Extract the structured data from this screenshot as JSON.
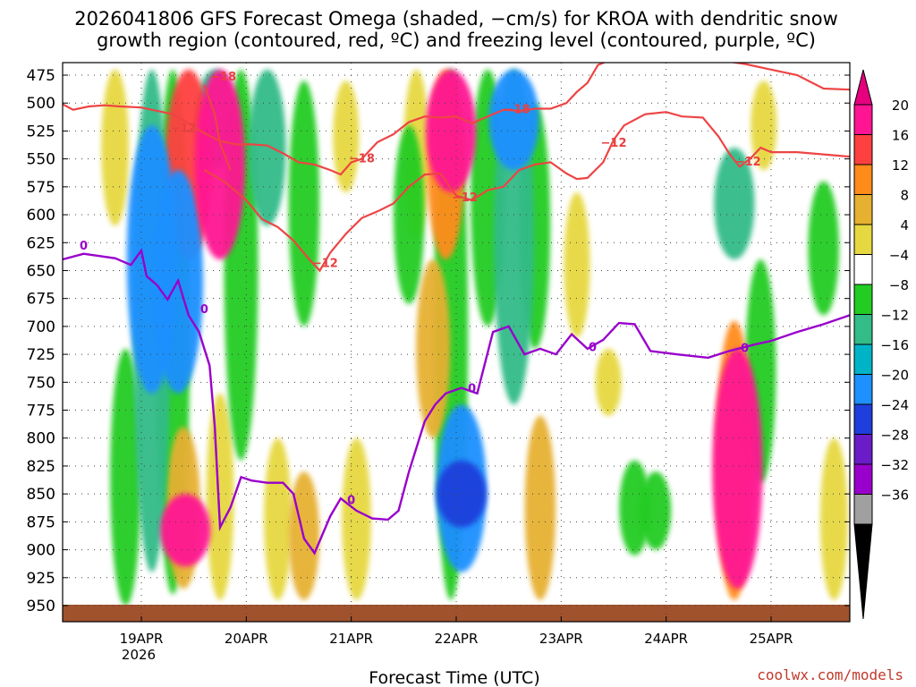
{
  "chart_data": {
    "type": "heatmap",
    "title_line1": "2026041806 GFS Forecast Omega (shaded, −cm/s) for KROA with dendritic snow",
    "title_line2": "growth region (contoured, red, ºC) and freezing level (contoured, purple, ºC)",
    "xlabel": "Forecast Time (UTC)",
    "credit": "coolwx.com/models",
    "x_ticks": [
      {
        "day": 19,
        "label": "19APR",
        "sub": "2026"
      },
      {
        "day": 20,
        "label": "20APR",
        "sub": ""
      },
      {
        "day": 21,
        "label": "21APR",
        "sub": ""
      },
      {
        "day": 22,
        "label": "22APR",
        "sub": ""
      },
      {
        "day": 23,
        "label": "23APR",
        "sub": ""
      },
      {
        "day": 24,
        "label": "24APR",
        "sub": ""
      },
      {
        "day": 25,
        "label": "25APR",
        "sub": ""
      }
    ],
    "x_range": [
      18.25,
      25.75
    ],
    "y_ticks": [
      475,
      500,
      525,
      550,
      575,
      600,
      625,
      650,
      675,
      700,
      725,
      750,
      775,
      800,
      825,
      850,
      875,
      900,
      925,
      950
    ],
    "colorbar": {
      "labels": [
        "20",
        "16",
        "12",
        "8",
        "4",
        "−4",
        "−8",
        "−12",
        "−16",
        "−20",
        "−24",
        "−28",
        "−32",
        "−36"
      ],
      "colors": [
        "#ff1493",
        "#ff4040",
        "#ff8c1a",
        "#e6b030",
        "#e6d840",
        "#ffffff",
        "#22cc22",
        "#33bb88",
        "#00b4c8",
        "#1e90ff",
        "#1e3fdc",
        "#6a1cc8",
        "#9900cc",
        "#a0a0a0"
      ],
      "top_color": "#e6007e",
      "bottom_color": "#000000"
    },
    "omega_blobs": [
      {
        "t": 18.75,
        "p0": 470,
        "p1": 610,
        "value": 6
      },
      {
        "t": 18.85,
        "p0": 720,
        "p1": 950,
        "value": -8
      },
      {
        "t": 19.1,
        "p0": 470,
        "p1": 920,
        "value": -12
      },
      {
        "t": 19.1,
        "p0": 520,
        "p1": 760,
        "value": -22
      },
      {
        "t": 19.3,
        "p0": 470,
        "p1": 940,
        "value": -10
      },
      {
        "t": 19.35,
        "p0": 560,
        "p1": 760,
        "value": -20
      },
      {
        "t": 19.45,
        "p0": 470,
        "p1": 640,
        "value": 18
      },
      {
        "t": 19.4,
        "p0": 790,
        "p1": 935,
        "value": 10
      },
      {
        "t": 19.42,
        "p0": 850,
        "p1": 915,
        "value": 20
      },
      {
        "t": 19.7,
        "p0": 470,
        "p1": 560,
        "value": -14
      },
      {
        "t": 19.75,
        "p0": 470,
        "p1": 640,
        "value": 20
      },
      {
        "t": 19.75,
        "p0": 760,
        "p1": 945,
        "value": 6
      },
      {
        "t": 19.95,
        "p0": 470,
        "p1": 820,
        "value": -10
      },
      {
        "t": 20.2,
        "p0": 470,
        "p1": 610,
        "value": -12
      },
      {
        "t": 20.3,
        "p0": 800,
        "p1": 945,
        "value": 6
      },
      {
        "t": 20.55,
        "p0": 480,
        "p1": 700,
        "value": -8
      },
      {
        "t": 20.55,
        "p0": 830,
        "p1": 945,
        "value": 8
      },
      {
        "t": 20.95,
        "p0": 480,
        "p1": 580,
        "value": 5
      },
      {
        "t": 21.05,
        "p0": 800,
        "p1": 945,
        "value": 7
      },
      {
        "t": 21.55,
        "p0": 520,
        "p1": 680,
        "value": -8
      },
      {
        "t": 21.62,
        "p0": 470,
        "p1": 620,
        "value": 5
      },
      {
        "t": 21.95,
        "p0": 470,
        "p1": 945,
        "value": -10
      },
      {
        "t": 21.9,
        "p0": 470,
        "p1": 640,
        "value": 12
      },
      {
        "t": 21.95,
        "p0": 470,
        "p1": 580,
        "value": 20
      },
      {
        "t": 21.78,
        "p0": 640,
        "p1": 800,
        "value": 10
      },
      {
        "t": 22.05,
        "p0": 770,
        "p1": 920,
        "value": -20
      },
      {
        "t": 22.05,
        "p0": 820,
        "p1": 880,
        "value": -26
      },
      {
        "t": 22.3,
        "p0": 470,
        "p1": 700,
        "value": -10
      },
      {
        "t": 22.55,
        "p0": 470,
        "p1": 770,
        "value": -14
      },
      {
        "t": 22.55,
        "p0": 470,
        "p1": 560,
        "value": -20
      },
      {
        "t": 22.75,
        "p0": 500,
        "p1": 720,
        "value": -8
      },
      {
        "t": 22.8,
        "p0": 780,
        "p1": 945,
        "value": 8
      },
      {
        "t": 23.15,
        "p0": 580,
        "p1": 710,
        "value": 5
      },
      {
        "t": 23.45,
        "p0": 720,
        "p1": 780,
        "value": 5
      },
      {
        "t": 23.7,
        "p0": 820,
        "p1": 905,
        "value": -8
      },
      {
        "t": 23.9,
        "p0": 830,
        "p1": 900,
        "value": -8
      },
      {
        "t": 24.65,
        "p0": 540,
        "p1": 640,
        "value": -14
      },
      {
        "t": 24.65,
        "p0": 695,
        "p1": 945,
        "value": 12
      },
      {
        "t": 24.68,
        "p0": 720,
        "p1": 935,
        "value": 20
      },
      {
        "t": 24.93,
        "p0": 480,
        "p1": 560,
        "value": 5
      },
      {
        "t": 24.9,
        "p0": 640,
        "p1": 840,
        "value": -8
      },
      {
        "t": 25.5,
        "p0": 570,
        "p1": 690,
        "value": -8
      },
      {
        "t": 25.6,
        "p0": 800,
        "p1": 945,
        "value": 6
      }
    ],
    "isotherm_red_upper": [
      [
        18.25,
        501
      ],
      [
        18.35,
        506
      ],
      [
        18.5,
        503
      ],
      [
        18.65,
        502
      ],
      [
        18.8,
        503
      ],
      [
        19.0,
        504
      ],
      [
        19.15,
        507
      ],
      [
        19.3,
        510
      ],
      [
        19.45,
        518
      ],
      [
        19.6,
        527
      ],
      [
        19.75,
        534
      ],
      [
        19.9,
        537
      ],
      [
        20.05,
        537
      ],
      [
        20.2,
        538
      ],
      [
        20.35,
        545
      ],
      [
        20.5,
        553
      ],
      [
        20.65,
        555
      ],
      [
        20.8,
        560
      ],
      [
        20.9,
        564
      ],
      [
        21.0,
        553
      ],
      [
        21.1,
        550
      ],
      [
        21.25,
        535
      ],
      [
        21.4,
        528
      ],
      [
        21.55,
        517
      ],
      [
        21.7,
        512
      ],
      [
        21.85,
        513
      ],
      [
        22.0,
        512
      ],
      [
        22.15,
        518
      ],
      [
        22.3,
        512
      ],
      [
        22.45,
        506
      ],
      [
        22.6,
        507
      ],
      [
        22.75,
        505
      ],
      [
        22.9,
        505
      ],
      [
        23.05,
        500
      ],
      [
        23.15,
        490
      ],
      [
        23.25,
        482
      ],
      [
        23.35,
        466
      ],
      [
        23.5,
        460
      ],
      [
        23.75,
        455
      ],
      [
        24.25,
        458
      ],
      [
        24.75,
        465
      ],
      [
        25.0,
        470
      ],
      [
        25.25,
        475
      ],
      [
        25.5,
        487
      ],
      [
        25.75,
        488
      ]
    ],
    "isotherm_red_lower": [
      [
        19.6,
        560
      ],
      [
        19.8,
        571
      ],
      [
        20.0,
        587
      ],
      [
        20.15,
        604
      ],
      [
        20.3,
        611
      ],
      [
        20.45,
        623
      ],
      [
        20.6,
        640
      ],
      [
        20.7,
        650
      ],
      [
        20.8,
        634
      ],
      [
        20.95,
        617
      ],
      [
        21.1,
        603
      ],
      [
        21.25,
        597
      ],
      [
        21.4,
        590
      ],
      [
        21.55,
        575
      ],
      [
        21.7,
        564
      ],
      [
        21.85,
        563
      ],
      [
        22.0,
        583
      ],
      [
        22.15,
        587
      ],
      [
        22.3,
        578
      ],
      [
        22.45,
        575
      ],
      [
        22.6,
        560
      ],
      [
        22.75,
        555
      ],
      [
        22.9,
        553
      ],
      [
        23.05,
        563
      ],
      [
        23.15,
        568
      ],
      [
        23.25,
        567
      ],
      [
        23.4,
        553
      ],
      [
        23.5,
        533
      ],
      [
        23.6,
        520
      ],
      [
        23.8,
        510
      ],
      [
        24.0,
        508
      ],
      [
        24.15,
        512
      ],
      [
        24.35,
        513
      ],
      [
        24.5,
        530
      ],
      [
        24.6,
        545
      ],
      [
        24.7,
        557
      ],
      [
        24.8,
        550
      ],
      [
        24.9,
        540
      ],
      [
        25.0,
        544
      ],
      [
        25.25,
        544
      ],
      [
        25.5,
        546
      ],
      [
        25.75,
        548
      ]
    ],
    "isotherm_red_left_branch": [
      [
        19.6,
        484
      ],
      [
        19.65,
        497
      ],
      [
        19.7,
        510
      ],
      [
        19.75,
        536
      ],
      [
        19.8,
        548
      ],
      [
        19.85,
        560
      ]
    ],
    "freezing_level": [
      [
        18.25,
        640
      ],
      [
        18.45,
        635
      ],
      [
        18.6,
        637
      ],
      [
        18.75,
        639
      ],
      [
        18.9,
        645
      ],
      [
        19.0,
        632
      ],
      [
        19.05,
        655
      ],
      [
        19.15,
        663
      ],
      [
        19.25,
        676
      ],
      [
        19.35,
        659
      ],
      [
        19.45,
        690
      ],
      [
        19.55,
        705
      ],
      [
        19.65,
        735
      ],
      [
        19.7,
        790
      ],
      [
        19.75,
        880
      ],
      [
        19.85,
        862
      ],
      [
        19.95,
        835
      ],
      [
        20.05,
        838
      ],
      [
        20.2,
        840
      ],
      [
        20.35,
        840
      ],
      [
        20.45,
        850
      ],
      [
        20.55,
        890
      ],
      [
        20.65,
        903
      ],
      [
        20.8,
        870
      ],
      [
        20.9,
        854
      ],
      [
        21.05,
        865
      ],
      [
        21.2,
        872
      ],
      [
        21.35,
        873
      ],
      [
        21.45,
        865
      ],
      [
        21.55,
        830
      ],
      [
        21.7,
        785
      ],
      [
        21.8,
        770
      ],
      [
        21.9,
        760
      ],
      [
        22.05,
        755
      ],
      [
        22.2,
        760
      ],
      [
        22.35,
        705
      ],
      [
        22.5,
        700
      ],
      [
        22.65,
        725
      ],
      [
        22.8,
        720
      ],
      [
        22.95,
        725
      ],
      [
        23.1,
        707
      ],
      [
        23.25,
        720
      ],
      [
        23.4,
        712
      ],
      [
        23.55,
        697
      ],
      [
        23.7,
        698
      ],
      [
        23.85,
        722
      ],
      [
        24.1,
        725
      ],
      [
        24.4,
        728
      ],
      [
        24.6,
        722
      ],
      [
        24.85,
        716
      ],
      [
        25.0,
        713
      ],
      [
        25.25,
        705
      ],
      [
        25.5,
        698
      ],
      [
        25.75,
        690
      ]
    ],
    "contour_labels": [
      {
        "t": 19.78,
        "p": 476,
        "text": "−18",
        "color": "red"
      },
      {
        "t": 19.4,
        "p": 522,
        "text": "−12",
        "color": "red"
      },
      {
        "t": 21.1,
        "p": 549,
        "text": "−18",
        "color": "red"
      },
      {
        "t": 20.75,
        "p": 643,
        "text": "−12",
        "color": "red"
      },
      {
        "t": 22.08,
        "p": 584,
        "text": "−12",
        "color": "red"
      },
      {
        "t": 22.58,
        "p": 505,
        "text": "−18",
        "color": "red"
      },
      {
        "t": 23.5,
        "p": 535,
        "text": "−12",
        "color": "red"
      },
      {
        "t": 24.78,
        "p": 552,
        "text": "−12",
        "color": "red"
      },
      {
        "t": 18.45,
        "p": 627,
        "text": "0",
        "color": "purple"
      },
      {
        "t": 19.6,
        "p": 684,
        "text": "0",
        "color": "purple"
      },
      {
        "t": 21.0,
        "p": 855,
        "text": "0",
        "color": "purple"
      },
      {
        "t": 22.15,
        "p": 755,
        "text": "0",
        "color": "purple"
      },
      {
        "t": 23.3,
        "p": 718,
        "text": "0",
        "color": "purple"
      },
      {
        "t": 24.75,
        "p": 719,
        "text": "0",
        "color": "purple"
      }
    ]
  }
}
